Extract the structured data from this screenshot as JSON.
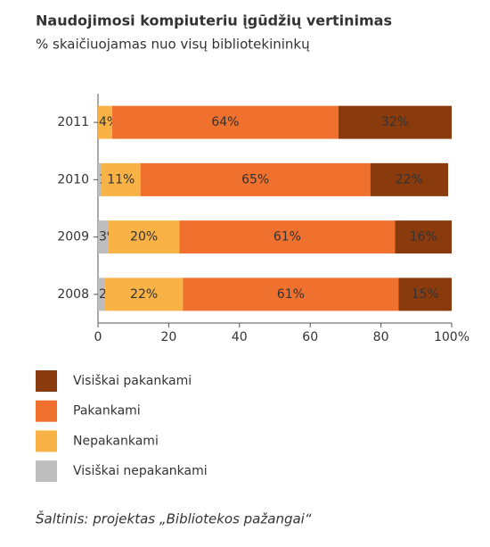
{
  "chart_data": {
    "type": "stacked-bar-horizontal",
    "title": "Naudojimosi kompiuteriu įgūdžių vertinimas",
    "subtitle": "% skaičiuojamas nuo visų bibliotekininkų",
    "source": "Šaltinis: projektas „Bibliotekos pažangai“",
    "categories": [
      "2011",
      "2010",
      "2009",
      "2008"
    ],
    "series": [
      {
        "name": "Visiškai nepakankami",
        "color": "#bdbdbd",
        "values": [
          null,
          1,
          3,
          2
        ],
        "value_labels": [
          null,
          "1%",
          "3%",
          "2%"
        ]
      },
      {
        "name": "Nepakankami",
        "color": "#f9b245",
        "values": [
          4,
          11,
          20,
          22
        ],
        "value_labels": [
          "4%",
          "11%",
          "20%",
          "22%"
        ]
      },
      {
        "name": "Pakankami",
        "color": "#f0702e",
        "values": [
          64,
          65,
          61,
          61
        ],
        "value_labels": [
          "64%",
          "65%",
          "61%",
          "61%"
        ]
      },
      {
        "name": "Visiškai pakankami",
        "color": "#8a3b0e",
        "values": [
          32,
          22,
          16,
          15
        ],
        "value_labels": [
          "32%",
          "22%",
          "16%",
          "15%"
        ]
      }
    ],
    "xlim": [
      0,
      100
    ],
    "xticks": [
      0,
      20,
      40,
      60,
      80,
      {
        "value": 100,
        "label": "100%"
      }
    ]
  }
}
